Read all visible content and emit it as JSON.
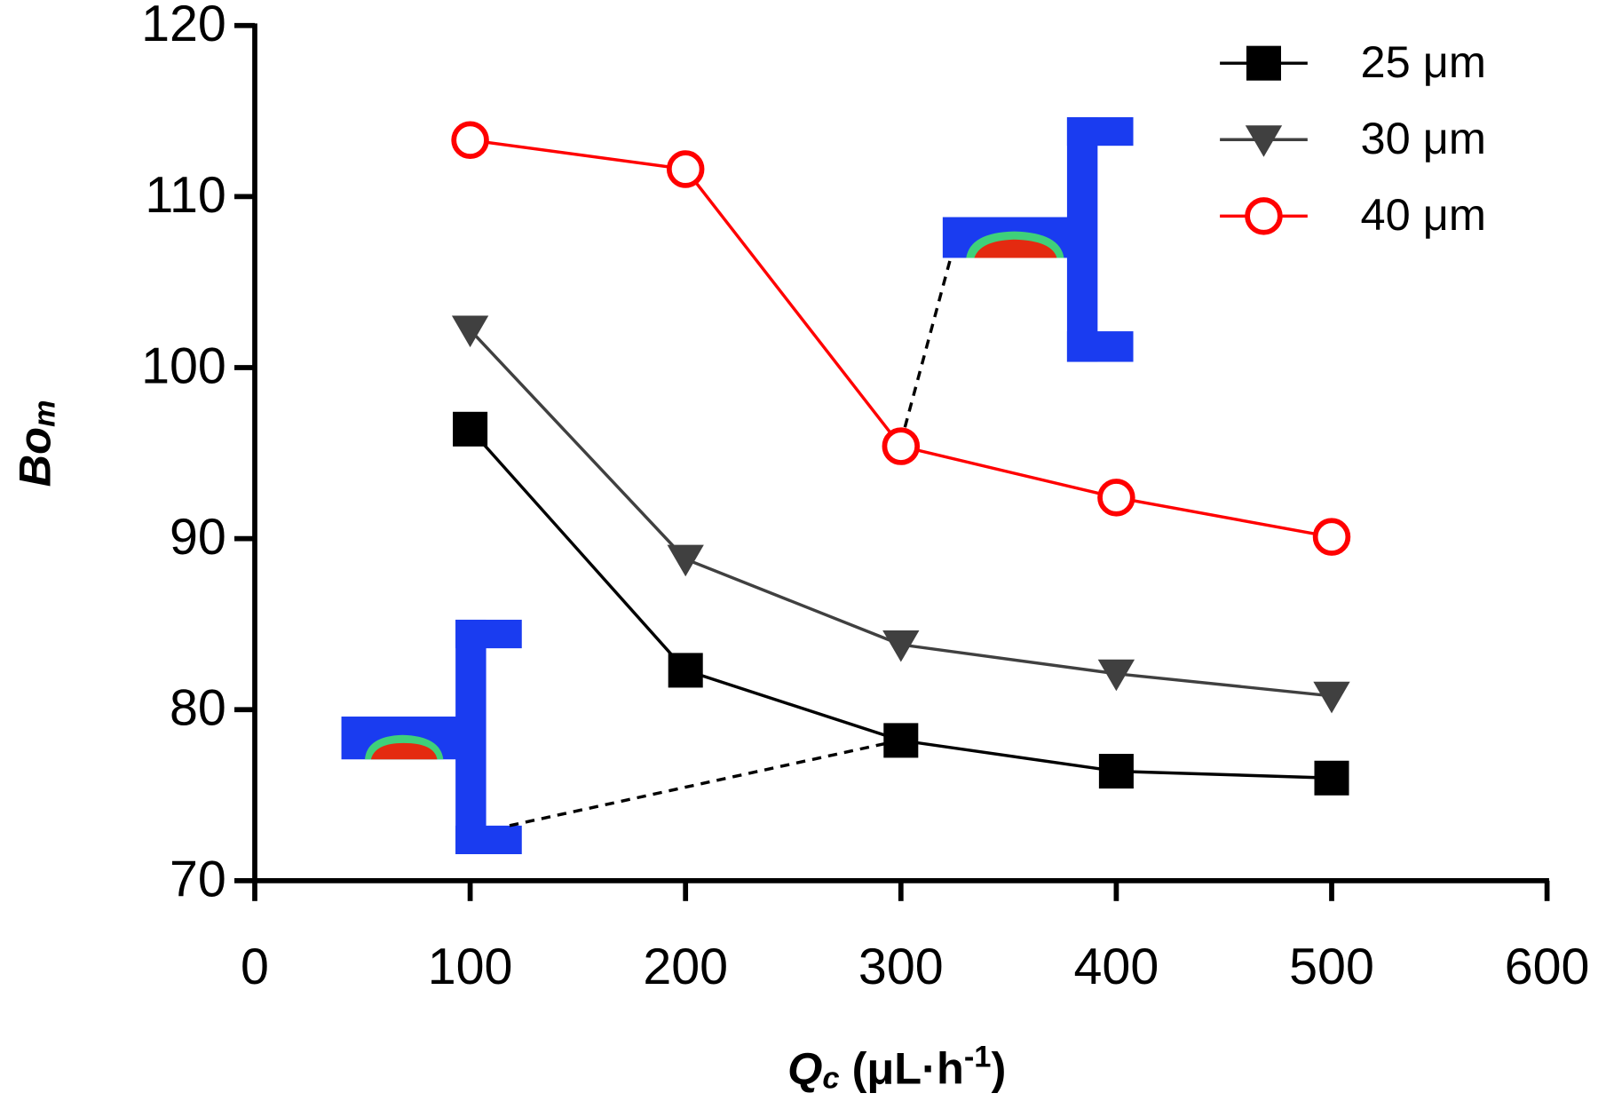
{
  "chart_data": {
    "type": "line",
    "x_label": [
      {
        "text": "Q",
        "italic": true
      },
      {
        "text": "c",
        "italic": true,
        "script": "sub"
      },
      {
        "text": " (μL·h"
      },
      {
        "text": "-1",
        "script": "super"
      },
      {
        "text": ")"
      }
    ],
    "y_label": [
      {
        "text": "Bo",
        "italic": true
      },
      {
        "text": "m",
        "italic": true,
        "script": "sub"
      }
    ],
    "x": [
      100,
      200,
      300,
      400,
      500
    ],
    "series": [
      {
        "name": "25 μm",
        "color": "#000000",
        "marker": "square",
        "values": [
          96.4,
          82.3,
          78.2,
          76.4,
          76.0
        ]
      },
      {
        "name": "30 μm",
        "color": "#404040",
        "marker": "triangle-down",
        "values": [
          102.2,
          88.8,
          83.8,
          82.1,
          80.8
        ]
      },
      {
        "name": "40 μm",
        "color": "#ff0000",
        "marker": "open-circle",
        "values": [
          113.3,
          111.6,
          95.4,
          92.4,
          90.1
        ]
      }
    ],
    "xlim": [
      0,
      600
    ],
    "xticks": [
      0,
      100,
      200,
      300,
      400,
      500,
      600
    ],
    "ylim": [
      70,
      120
    ],
    "yticks": [
      70,
      80,
      90,
      100,
      110,
      120
    ],
    "grid": false,
    "legend": "upper right"
  }
}
